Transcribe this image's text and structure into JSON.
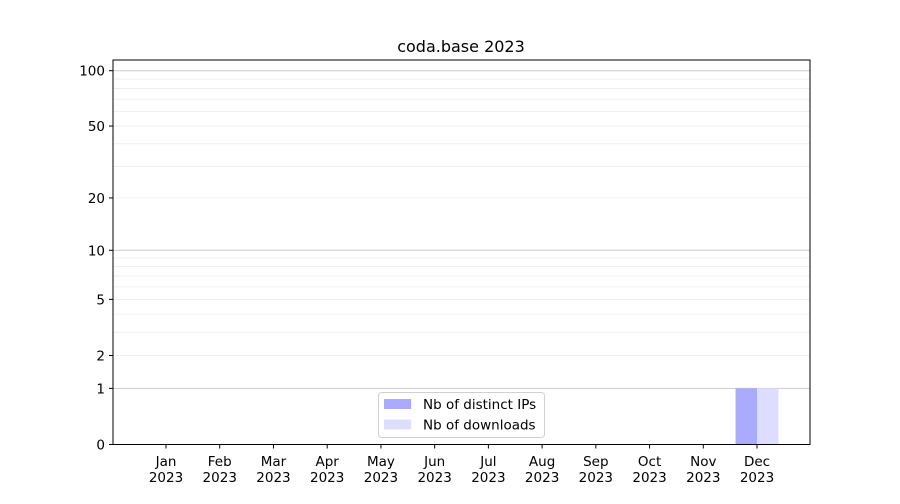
{
  "chart_data": {
    "type": "bar",
    "title": "coda.base 2023",
    "xlabel": "",
    "ylabel": "",
    "y_scale": "log(1+y)",
    "ylim": [
      0,
      113
    ],
    "y_ticks": [
      0,
      1,
      2,
      5,
      10,
      20,
      50,
      100
    ],
    "y_major_grid": [
      1,
      10,
      100
    ],
    "y_minor_grid": [
      2,
      3,
      4,
      5,
      6,
      7,
      8,
      9,
      20,
      30,
      40,
      50,
      60,
      70,
      80,
      90
    ],
    "grid": true,
    "categories": [
      "Jan\n2023",
      "Feb\n2023",
      "Mar\n2023",
      "Apr\n2023",
      "May\n2023",
      "Jun\n2023",
      "Jul\n2023",
      "Aug\n2023",
      "Sep\n2023",
      "Oct\n2023",
      "Nov\n2023",
      "Dec\n2023"
    ],
    "series": [
      {
        "name": "Nb of distinct IPs",
        "color": "#aaaaff",
        "values": [
          0,
          0,
          0,
          0,
          0,
          0,
          0,
          0,
          0,
          0,
          0,
          1
        ]
      },
      {
        "name": "Nb of downloads",
        "color": "#ddddff",
        "values": [
          0,
          0,
          0,
          0,
          0,
          0,
          0,
          0,
          0,
          0,
          0,
          1
        ]
      }
    ],
    "legend_position": "lower-center"
  }
}
